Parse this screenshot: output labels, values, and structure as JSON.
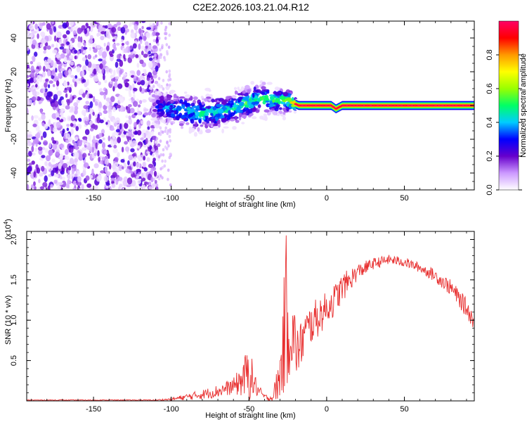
{
  "title": "C2E2.2026.103.21.04.R12",
  "chart_data": [
    {
      "type": "heatmap",
      "name": "spectrogram",
      "xlabel": "Height of straight line (km)",
      "ylabel": "Frequency (Hz)",
      "xlim": [
        -193,
        95
      ],
      "ylim": [
        -50,
        50
      ],
      "xticks": [
        -150,
        -100,
        -50,
        0,
        50
      ],
      "xtick_labels": [
        "-150",
        "-100",
        "-50",
        "0",
        "50"
      ],
      "yticks": [
        -40,
        -20,
        0,
        20,
        40
      ],
      "ytick_labels": [
        "-40",
        "-20",
        "0",
        "20",
        "40"
      ],
      "noise_region": {
        "x_from": -193,
        "x_to": -112,
        "amplitude": [
          0.02,
          0.25
        ]
      },
      "ridge": [
        {
          "x": -112,
          "y": 0,
          "width": 8,
          "amplitude": 0.2
        },
        {
          "x": -100,
          "y": -2,
          "width": 10,
          "amplitude": 0.35
        },
        {
          "x": -80,
          "y": -5,
          "width": 10,
          "amplitude": 0.4
        },
        {
          "x": -60,
          "y": -2,
          "width": 9,
          "amplitude": 0.45
        },
        {
          "x": -45,
          "y": 4,
          "width": 9,
          "amplitude": 0.45
        },
        {
          "x": -25,
          "y": 3,
          "width": 7,
          "amplitude": 0.5
        },
        {
          "x": -18,
          "y": 0,
          "width": 3,
          "amplitude": 0.9
        },
        {
          "x": 3,
          "y": 0,
          "width": 3,
          "amplitude": 0.95
        },
        {
          "x": 6,
          "y": -2,
          "width": 3,
          "amplitude": 0.95
        },
        {
          "x": 10,
          "y": 0,
          "width": 3,
          "amplitude": 0.95
        },
        {
          "x": 94,
          "y": 0,
          "width": 3,
          "amplitude": 0.95
        }
      ]
    },
    {
      "type": "colorbar",
      "name": "amplitude-scale",
      "label": "Normalized spectral amplitude",
      "range": [
        0,
        1
      ],
      "ticks": [
        0,
        0.2,
        0.4,
        0.6,
        0.8
      ],
      "tick_labels": [
        "0.0",
        "0.2",
        "0.4",
        "0.6",
        "0.8"
      ],
      "colors": [
        "#ffffff",
        "#cc99ff",
        "#6600cc",
        "#0000ff",
        "#00ccff",
        "#00ff66",
        "#99ff00",
        "#ffff00",
        "#ff9900",
        "#ff0000",
        "#ff0066"
      ]
    },
    {
      "type": "line",
      "name": "snr",
      "xlabel": "Height of straight line (km)",
      "ylabel": "SNR (10 * v/v)",
      "y_multiplier_label": "(x10",
      "y_multiplier_exp": "4",
      "y_multiplier_close": ")",
      "xlim": [
        -193,
        95
      ],
      "ylim": [
        0,
        2.1
      ],
      "xticks": [
        -150,
        -100,
        -50,
        0,
        50
      ],
      "xtick_labels": [
        "-150",
        "-100",
        "-50",
        "0",
        "50"
      ],
      "yticks": [
        0.5,
        1.0,
        1.5,
        2.0
      ],
      "ytick_labels": [
        "0.5",
        "1.0",
        "1.5",
        "2.0"
      ],
      "color": "#e83030",
      "envelope": {
        "x": [
          -193,
          -140,
          -110,
          -100,
          -90,
          -80,
          -70,
          -60,
          -55,
          -50,
          -45,
          -40,
          -35,
          -30,
          -27,
          -25,
          -22,
          -18,
          -15,
          -10,
          -5,
          0,
          5,
          10,
          20,
          30,
          40,
          50,
          60,
          70,
          80,
          90,
          95
        ],
        "base": [
          0.01,
          0.01,
          0.01,
          0.02,
          0.05,
          0.08,
          0.12,
          0.18,
          0.25,
          0.35,
          0.15,
          0.05,
          0.03,
          0.3,
          0.9,
          1.1,
          0.8,
          0.6,
          0.8,
          0.95,
          1.05,
          1.15,
          1.25,
          1.4,
          1.6,
          1.7,
          1.75,
          1.72,
          1.65,
          1.55,
          1.4,
          1.15,
          0.98
        ],
        "spread": [
          0.005,
          0.005,
          0.006,
          0.015,
          0.04,
          0.06,
          0.08,
          0.1,
          0.2,
          0.35,
          0.1,
          0.03,
          0.05,
          0.3,
          0.8,
          0.9,
          0.5,
          0.3,
          0.3,
          0.25,
          0.25,
          0.2,
          0.2,
          0.18,
          0.1,
          0.07,
          0.06,
          0.06,
          0.06,
          0.08,
          0.1,
          0.12,
          0.1
        ]
      },
      "peak": {
        "x": -26,
        "y": 2.05
      }
    }
  ]
}
